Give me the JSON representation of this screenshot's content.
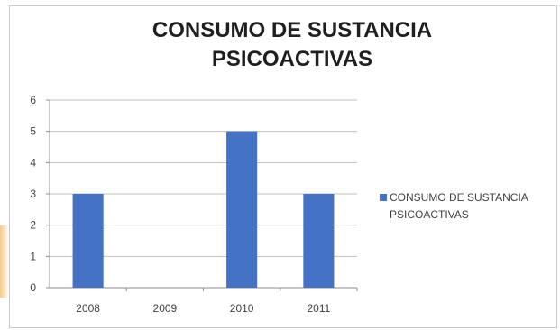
{
  "chart_data": {
    "type": "bar",
    "title": "CONSUMO DE SUSTANCIA PSICOACTIVAS",
    "title_lines": [
      "CONSUMO DE SUSTANCIA",
      "PSICOACTIVAS"
    ],
    "categories": [
      "2008",
      "2009",
      "2010",
      "2011"
    ],
    "series": [
      {
        "name": "CONSUMO DE SUSTANCIA PSICOACTIVAS",
        "name_lines": [
          "CONSUMO DE SUSTANCIA",
          "PSICOACTIVAS"
        ],
        "values": [
          3,
          0,
          5,
          3
        ],
        "color": "#4472c4"
      }
    ],
    "yticks": [
      "0",
      "1",
      "2",
      "3",
      "4",
      "5",
      "6"
    ],
    "ylim": [
      0,
      6
    ],
    "xlabel": "",
    "ylabel": "",
    "grid": true,
    "legend_position": "right"
  }
}
